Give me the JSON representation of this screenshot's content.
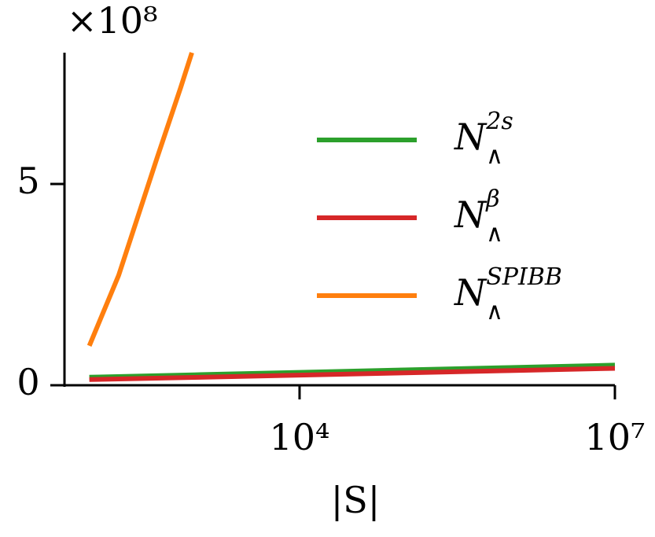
{
  "chart_data": {
    "type": "line",
    "y_offset_label": "×10⁸",
    "xlabel": "|S|",
    "xscale": "log",
    "xlim": [
      58,
      10000000
    ],
    "xticks": [
      {
        "value": 10000,
        "label": "10⁴"
      },
      {
        "value": 10000000,
        "label": "10⁷"
      }
    ],
    "ylim": [
      0,
      8.26
    ],
    "yticks": [
      0,
      5
    ],
    "series": [
      {
        "name": "N",
        "subscript": "∧",
        "superscript": "2s",
        "color": "#2ca02c",
        "x": [
          100,
          1000,
          10000,
          100000,
          1000000,
          10000000
        ],
        "values": [
          0.2,
          0.26,
          0.32,
          0.38,
          0.44,
          0.5
        ]
      },
      {
        "name": "N",
        "subscript": "∧",
        "superscript": "β",
        "color": "#d62728",
        "x": [
          100,
          1000,
          10000,
          100000,
          1000000,
          10000000
        ],
        "values": [
          0.14,
          0.196,
          0.252,
          0.308,
          0.364,
          0.42
        ]
      },
      {
        "name": "N",
        "subscript": "∧",
        "superscript": "SPIBB",
        "color": "#ff7f0e",
        "x": [
          100,
          190,
          443,
          741,
          944
        ],
        "values": [
          0.98,
          2.73,
          5.66,
          7.4,
          8.26
        ]
      }
    ]
  }
}
